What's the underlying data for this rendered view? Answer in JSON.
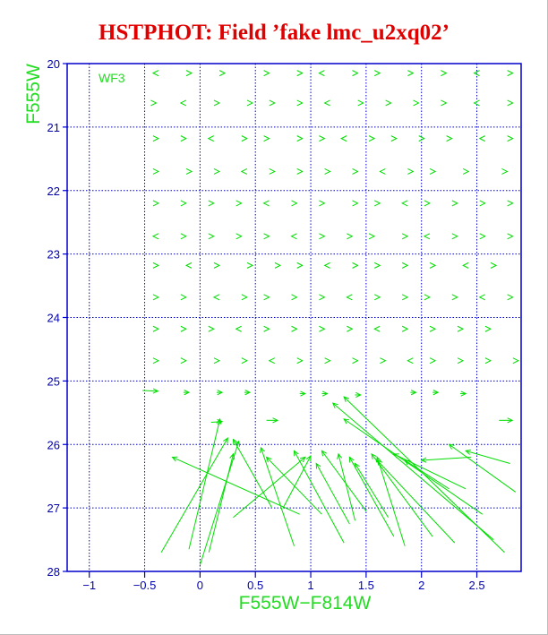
{
  "chart_data": {
    "type": "scatter",
    "title": "HSTPHOT: Field ’fake lmc_u2xq02’",
    "xlabel": "F555W−F814W",
    "ylabel": "F555W",
    "panel_label": "WF3",
    "xlim": [
      -1.2,
      2.9
    ],
    "ylim": [
      20,
      28
    ],
    "y_inverted": true,
    "grid": true,
    "x_ticks": [
      -1,
      -0.5,
      0,
      0.5,
      1,
      1.5,
      2,
      2.5
    ],
    "x_tick_labels": [
      "−1",
      "−0.5",
      "0",
      "0.5",
      "1",
      "1.5",
      "2",
      "2.5"
    ],
    "y_ticks": [
      20,
      21,
      22,
      23,
      24,
      25,
      26,
      27,
      28
    ],
    "y_tick_labels": [
      "20",
      "21",
      "22",
      "23",
      "24",
      "25",
      "26",
      "27",
      "28"
    ],
    "marker_symbol": ">",
    "marker_rows": [
      {
        "y": 20.15,
        "x": [
          -0.4,
          -0.1,
          0.2,
          0.6,
          0.9,
          1.1,
          1.4,
          1.6,
          1.9,
          2.2,
          2.5,
          2.8
        ]
      },
      {
        "y": 20.62,
        "x": [
          -0.42,
          -0.15,
          0.15,
          0.45,
          0.65,
          0.9,
          1.15,
          1.45,
          1.7,
          1.95,
          2.2,
          2.5,
          2.8
        ]
      },
      {
        "y": 21.18,
        "x": [
          -0.4,
          -0.15,
          0.1,
          0.4,
          0.6,
          0.9,
          1.1,
          1.3,
          1.55,
          1.75,
          2.0,
          2.25,
          2.55,
          2.8
        ]
      },
      {
        "y": 21.7,
        "x": [
          -0.4,
          -0.1,
          0.15,
          0.4,
          0.65,
          0.9,
          1.15,
          1.4,
          1.65,
          1.9,
          2.1,
          2.4,
          2.75
        ]
      },
      {
        "y": 22.2,
        "x": [
          -0.4,
          -0.15,
          0.1,
          0.35,
          0.6,
          0.85,
          1.1,
          1.4,
          1.6,
          1.85,
          2.05,
          2.3,
          2.55,
          2.8
        ]
      },
      {
        "y": 22.72,
        "x": [
          -0.4,
          -0.15,
          0.1,
          0.35,
          0.6,
          0.85,
          1.1,
          1.35,
          1.55,
          1.85,
          2.05,
          2.3,
          2.55,
          2.8
        ]
      },
      {
        "y": 23.18,
        "x": [
          -0.4,
          -0.1,
          0.15,
          0.45,
          0.7,
          0.9,
          1.15,
          1.4,
          1.6,
          1.85,
          2.1,
          2.4,
          2.65
        ]
      },
      {
        "y": 23.68,
        "x": [
          -0.4,
          -0.15,
          0.15,
          0.4,
          0.6,
          0.85,
          1.1,
          1.35,
          1.6,
          1.85,
          2.05,
          2.3,
          2.55,
          2.8
        ]
      },
      {
        "y": 24.18,
        "x": [
          -0.4,
          -0.15,
          0.1,
          0.35,
          0.6,
          0.85,
          1.1,
          1.35,
          1.6,
          1.85,
          2.1,
          2.35,
          2.6
        ]
      },
      {
        "y": 24.68,
        "x": [
          -0.4,
          -0.15,
          0.15,
          0.4,
          0.65,
          0.9,
          1.15,
          1.4,
          1.65,
          1.9,
          2.1,
          2.35,
          2.6,
          2.85
        ]
      }
    ],
    "shift_vectors": [
      {
        "from": [
          -0.52,
          25.15
        ],
        "to": [
          -0.38,
          25.16
        ]
      },
      {
        "from": [
          -0.15,
          25.18
        ],
        "to": [
          -0.1,
          25.18
        ]
      },
      {
        "from": [
          0.15,
          25.18
        ],
        "to": [
          0.2,
          25.18
        ]
      },
      {
        "from": [
          0.4,
          25.18
        ],
        "to": [
          0.45,
          25.18
        ]
      },
      {
        "from": [
          0.9,
          25.2
        ],
        "to": [
          0.95,
          25.2
        ]
      },
      {
        "from": [
          1.1,
          25.2
        ],
        "to": [
          1.15,
          25.2
        ]
      },
      {
        "from": [
          1.4,
          25.22
        ],
        "to": [
          1.45,
          25.22
        ]
      },
      {
        "from": [
          1.9,
          25.18
        ],
        "to": [
          1.95,
          25.18
        ]
      },
      {
        "from": [
          2.1,
          25.18
        ],
        "to": [
          2.15,
          25.18
        ]
      },
      {
        "from": [
          2.35,
          25.2
        ],
        "to": [
          2.4,
          25.2
        ]
      },
      {
        "from": [
          0.1,
          25.65
        ],
        "to": [
          0.2,
          25.64
        ]
      },
      {
        "from": [
          0.6,
          25.62
        ],
        "to": [
          0.7,
          25.62
        ]
      },
      {
        "from": [
          2.7,
          25.62
        ],
        "to": [
          2.82,
          25.62
        ]
      },
      {
        "from": [
          -0.35,
          27.7
        ],
        "to": [
          0.25,
          25.9
        ]
      },
      {
        "from": [
          -0.1,
          27.65
        ],
        "to": [
          0.18,
          25.6
        ]
      },
      {
        "from": [
          0.0,
          27.9
        ],
        "to": [
          0.35,
          25.95
        ]
      },
      {
        "from": [
          0.08,
          27.7
        ],
        "to": [
          0.3,
          26.15
        ]
      },
      {
        "from": [
          0.9,
          27.1
        ],
        "to": [
          -0.25,
          26.2
        ]
      },
      {
        "from": [
          0.85,
          27.6
        ],
        "to": [
          0.55,
          26.05
        ]
      },
      {
        "from": [
          0.65,
          27.0
        ],
        "to": [
          0.3,
          25.92
        ]
      },
      {
        "from": [
          0.3,
          27.15
        ],
        "to": [
          0.95,
          26.2
        ]
      },
      {
        "from": [
          1.1,
          27.1
        ],
        "to": [
          0.6,
          26.2
        ]
      },
      {
        "from": [
          0.75,
          27.0
        ],
        "to": [
          1.0,
          26.18
        ]
      },
      {
        "from": [
          1.3,
          27.55
        ],
        "to": [
          0.85,
          26.1
        ]
      },
      {
        "from": [
          1.35,
          27.25
        ],
        "to": [
          1.05,
          26.3
        ]
      },
      {
        "from": [
          1.5,
          27.05
        ],
        "to": [
          1.1,
          26.1
        ]
      },
      {
        "from": [
          1.75,
          27.45
        ],
        "to": [
          1.35,
          26.2
        ]
      },
      {
        "from": [
          1.85,
          27.6
        ],
        "to": [
          1.6,
          26.2
        ]
      },
      {
        "from": [
          1.4,
          27.2
        ],
        "to": [
          1.25,
          26.15
        ]
      },
      {
        "from": [
          1.7,
          27.15
        ],
        "to": [
          1.4,
          26.3
        ]
      },
      {
        "from": [
          2.1,
          27.45
        ],
        "to": [
          1.55,
          26.15
        ]
      },
      {
        "from": [
          2.3,
          27.55
        ],
        "to": [
          1.6,
          26.25
        ]
      },
      {
        "from": [
          2.75,
          27.7
        ],
        "to": [
          1.3,
          25.25
        ]
      },
      {
        "from": [
          2.65,
          27.5
        ],
        "to": [
          1.2,
          25.35
        ]
      },
      {
        "from": [
          2.55,
          27.1
        ],
        "to": [
          1.3,
          25.6
        ]
      },
      {
        "from": [
          2.4,
          26.7
        ],
        "to": [
          1.75,
          26.15
        ]
      },
      {
        "from": [
          2.25,
          26.7
        ],
        "to": [
          1.85,
          26.25
        ]
      },
      {
        "from": [
          2.85,
          26.75
        ],
        "to": [
          2.25,
          26.0
        ]
      },
      {
        "from": [
          2.8,
          26.3
        ],
        "to": [
          2.4,
          26.1
        ]
      },
      {
        "from": [
          2.45,
          26.2
        ],
        "to": [
          2.0,
          26.25
        ]
      }
    ]
  },
  "colors": {
    "title": "#e00000",
    "data": "#00dd00",
    "grid": "#0000cc",
    "axes_label": "#22dd22",
    "ticks": "#0000aa"
  }
}
